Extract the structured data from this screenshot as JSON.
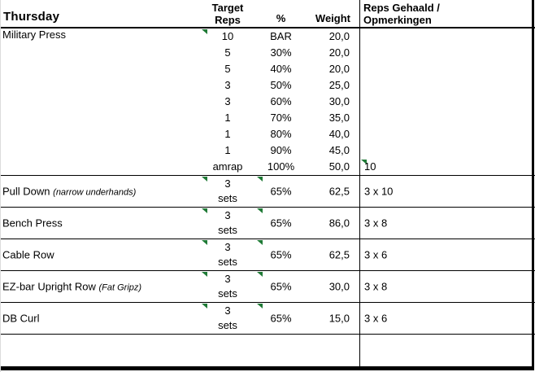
{
  "header": {
    "day": "Thursday",
    "target_line1": "Target",
    "target_line2": "Reps",
    "pct": "%",
    "weight": "Weight",
    "result_line1": "Reps Gehaald /",
    "result_line2": "Opmerkingen"
  },
  "colors": {
    "indicator_green": "#1f7a36",
    "border_black": "#000000",
    "background": "#ffffff"
  },
  "icons": {
    "error_indicator": "corner-triangle"
  },
  "military": {
    "name": "Military Press",
    "rows": [
      {
        "reps": "10",
        "pct": "BAR",
        "weight": "20,0",
        "result": "",
        "reps_indicator": true,
        "result_indicator": false
      },
      {
        "reps": "5",
        "pct": "30%",
        "weight": "20,0",
        "result": "",
        "reps_indicator": false,
        "result_indicator": false
      },
      {
        "reps": "5",
        "pct": "40%",
        "weight": "20,0",
        "result": "",
        "reps_indicator": false,
        "result_indicator": false
      },
      {
        "reps": "3",
        "pct": "50%",
        "weight": "25,0",
        "result": "",
        "reps_indicator": false,
        "result_indicator": false
      },
      {
        "reps": "3",
        "pct": "60%",
        "weight": "30,0",
        "result": "",
        "reps_indicator": false,
        "result_indicator": false
      },
      {
        "reps": "1",
        "pct": "70%",
        "weight": "35,0",
        "result": "",
        "reps_indicator": false,
        "result_indicator": false
      },
      {
        "reps": "1",
        "pct": "80%",
        "weight": "40,0",
        "result": "",
        "reps_indicator": false,
        "result_indicator": false
      },
      {
        "reps": "1",
        "pct": "90%",
        "weight": "45,0",
        "result": "",
        "reps_indicator": false,
        "result_indicator": false
      },
      {
        "reps": "amrap",
        "pct": "100%",
        "weight": "50,0",
        "result": "10",
        "reps_indicator": false,
        "result_indicator": true
      }
    ]
  },
  "exercises": [
    {
      "name": "Pull Down",
      "note": "(narrow underhands)",
      "sets_line1": "3",
      "sets_line2": "sets",
      "pct": "65%",
      "weight": "62,5",
      "result": "3 x 10"
    },
    {
      "name": "Bench Press",
      "note": "",
      "sets_line1": "3",
      "sets_line2": "sets",
      "pct": "65%",
      "weight": "86,0",
      "result": "3 x 8"
    },
    {
      "name": "Cable Row",
      "note": "",
      "sets_line1": "3",
      "sets_line2": "sets",
      "pct": "65%",
      "weight": "62,5",
      "result": "3 x 6"
    },
    {
      "name": "EZ-bar Upright Row",
      "note": "(Fat Gripz)",
      "sets_line1": "3",
      "sets_line2": "sets",
      "pct": "65%",
      "weight": "30,0",
      "result": "3 x 8"
    },
    {
      "name": "DB Curl",
      "note": "",
      "sets_line1": "3",
      "sets_line2": "sets",
      "pct": "65%",
      "weight": "15,0",
      "result": "3 x 6"
    }
  ]
}
